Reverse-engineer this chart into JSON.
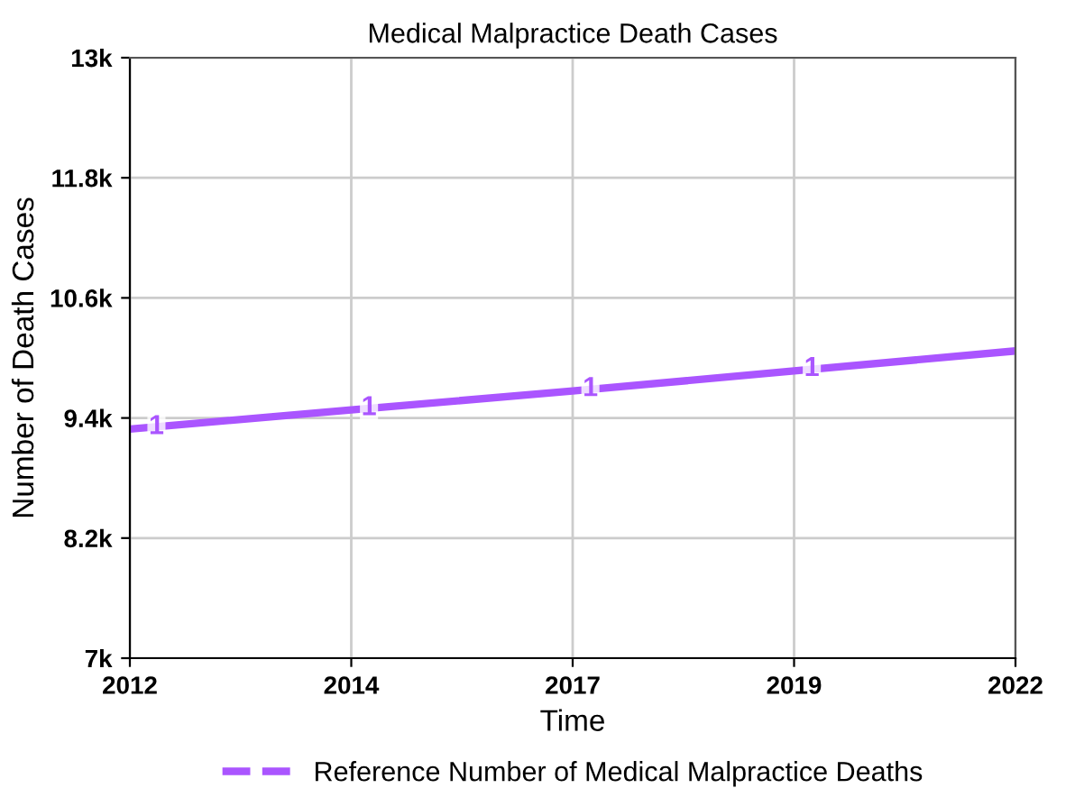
{
  "chart_data": {
    "type": "line",
    "title": "Medical Malpractice Death Cases",
    "xlabel": "Time",
    "ylabel": "Number of Death Cases",
    "x": [
      2012,
      2014.5,
      2017,
      2019.5,
      2022
    ],
    "series": [
      {
        "name": "Reference Number of Medical Malpractice Deaths",
        "color": "#aa55ff",
        "values": [
          9290,
          9480,
          9670,
          9870,
          10070
        ]
      }
    ],
    "xlim": [
      2012,
      2022
    ],
    "xticks": [
      2012,
      {
        "value": 2014.5,
        "label": "2014"
      },
      2017,
      {
        "value": 2019.5,
        "label": "2019"
      },
      2022
    ],
    "ylim": [
      7000,
      13000
    ],
    "yticks": [
      {
        "value": 7000,
        "label": "7k"
      },
      {
        "value": 8200,
        "label": "8.2k"
      },
      {
        "value": 9400,
        "label": "9.4k"
      },
      {
        "value": 10600,
        "label": "10.6k"
      },
      {
        "value": 11800,
        "label": "11.8k"
      },
      {
        "value": 13000,
        "label": "13k"
      }
    ],
    "annotations": [
      {
        "text": "1",
        "x": 2012.3,
        "y": 9310
      },
      {
        "text": "1",
        "x": 2014.7,
        "y": 9500
      },
      {
        "text": "1",
        "x": 2017.2,
        "y": 9690
      },
      {
        "text": "1",
        "x": 2019.7,
        "y": 9890
      }
    ],
    "grid": true,
    "legend": "bottom",
    "line_style": "solid"
  }
}
